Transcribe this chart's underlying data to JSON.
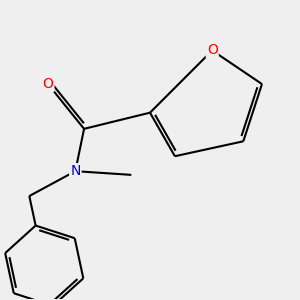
{
  "background_color": "#efefef",
  "bond_color": "#000000",
  "atom_colors": {
    "O": "#ff0000",
    "N": "#0000cd",
    "C": "#000000"
  },
  "figsize": [
    3.0,
    3.0
  ],
  "dpi": 100,
  "lw": 1.5,
  "fs": 10
}
